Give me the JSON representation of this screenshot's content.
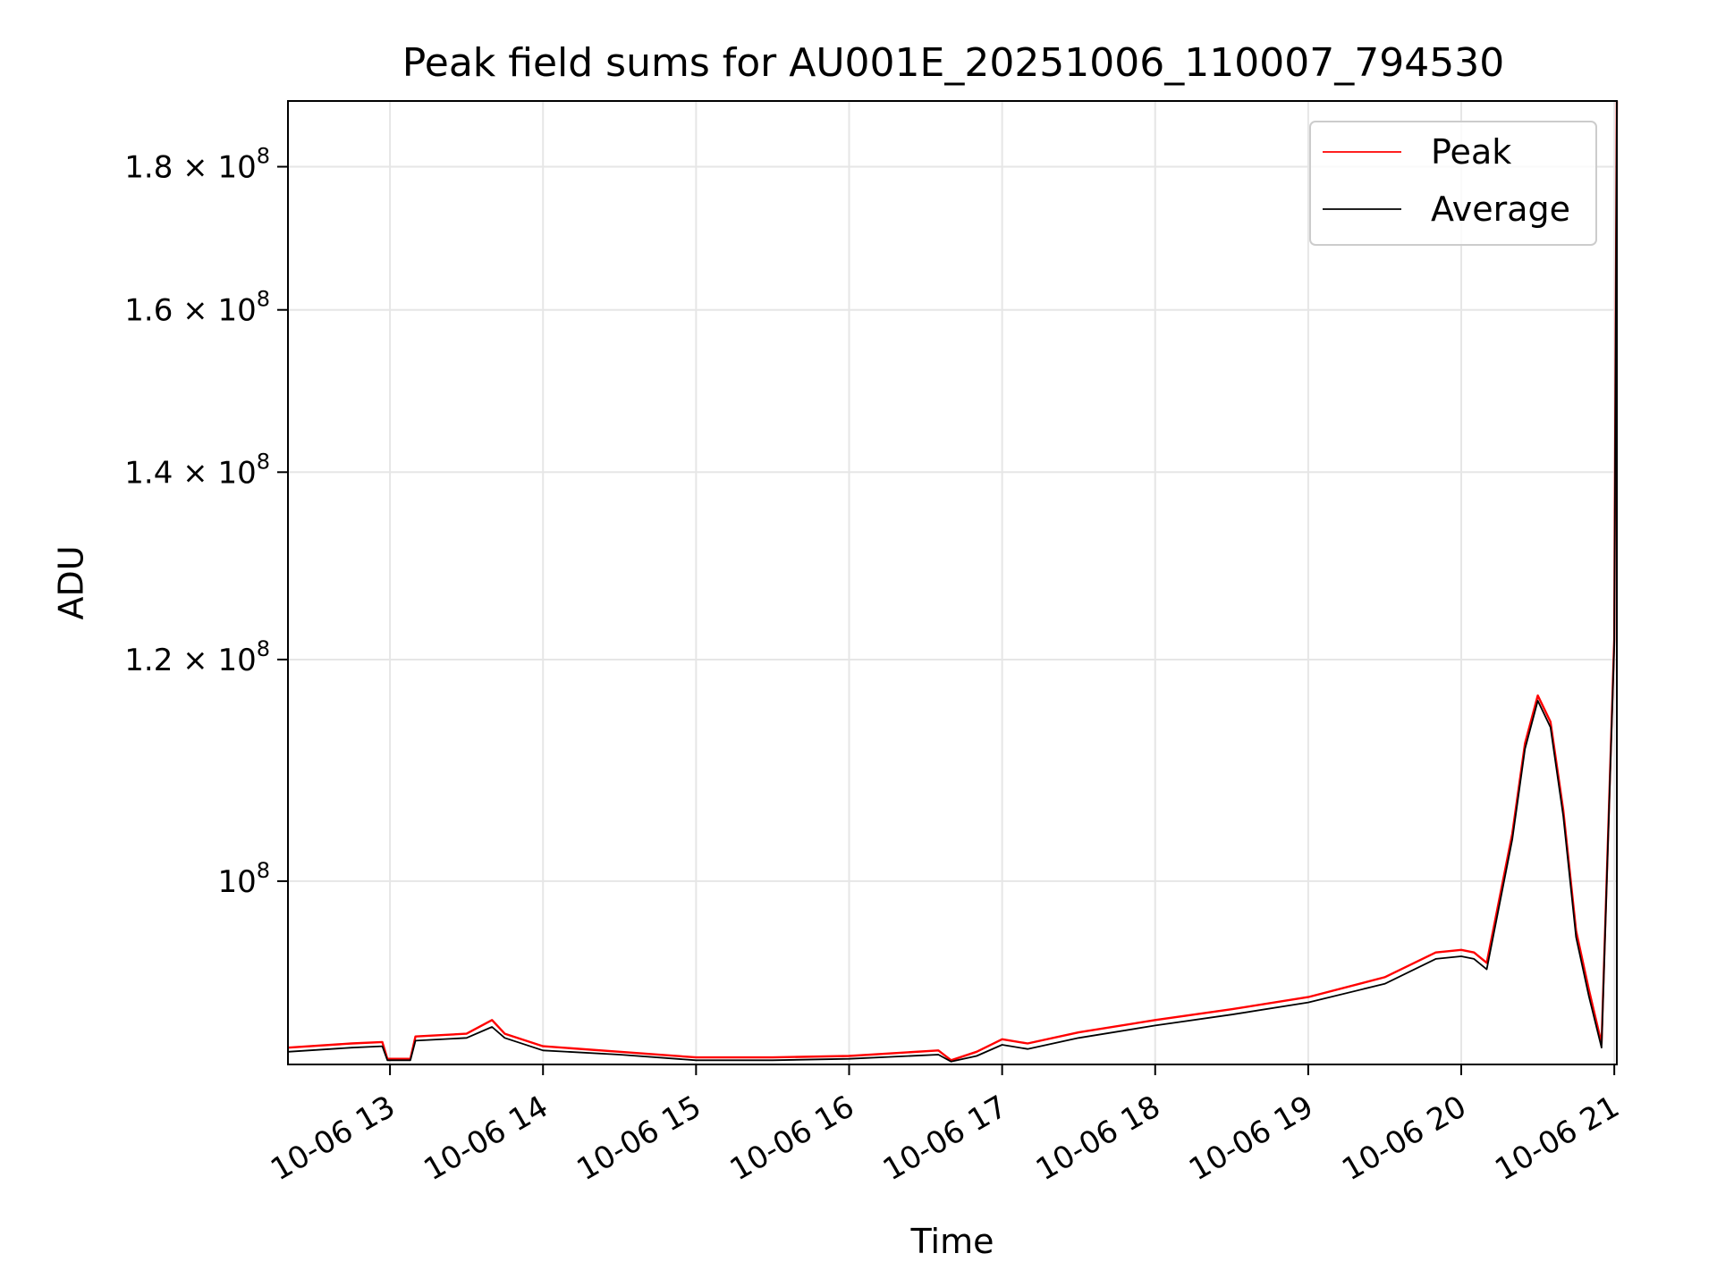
{
  "chart_data": {
    "type": "line",
    "title": "Peak field sums for AU001E_20251006_110007_794530",
    "xlabel": "Time",
    "ylabel": "ADU",
    "x_scale": "time",
    "y_scale": "log",
    "xlim": [
      "2025-10-06 12:20",
      "2025-10-06 21:01"
    ],
    "ylim": [
      86000000,
      190000000
    ],
    "x_ticks": [
      {
        "value": "2025-10-06 13:00",
        "label": "10-06 13"
      },
      {
        "value": "2025-10-06 14:00",
        "label": "10-06 14"
      },
      {
        "value": "2025-10-06 15:00",
        "label": "10-06 15"
      },
      {
        "value": "2025-10-06 16:00",
        "label": "10-06 16"
      },
      {
        "value": "2025-10-06 17:00",
        "label": "10-06 17"
      },
      {
        "value": "2025-10-06 18:00",
        "label": "10-06 18"
      },
      {
        "value": "2025-10-06 19:00",
        "label": "10-06 19"
      },
      {
        "value": "2025-10-06 20:00",
        "label": "10-06 20"
      },
      {
        "value": "2025-10-06 21:00",
        "label": "10-06 21"
      }
    ],
    "y_ticks": [
      {
        "value": 100000000,
        "mantissa": "",
        "base": "10",
        "exp": "8"
      },
      {
        "value": 120000000,
        "mantissa": "1.2",
        "base": "10",
        "exp": "8"
      },
      {
        "value": 140000000,
        "mantissa": "1.4",
        "base": "10",
        "exp": "8"
      },
      {
        "value": 160000000,
        "mantissa": "1.6",
        "base": "10",
        "exp": "8"
      },
      {
        "value": 180000000,
        "mantissa": "1.8",
        "base": "10",
        "exp": "8"
      }
    ],
    "grid": true,
    "legend_position": "top-right",
    "series": [
      {
        "name": "Peak",
        "color": "#ff0000",
        "points": [
          [
            "2025-10-06 12:20",
            87200000
          ],
          [
            "2025-10-06 12:45",
            87500000
          ],
          [
            "2025-10-06 12:57",
            87600000
          ],
          [
            "2025-10-06 12:59",
            86400000
          ],
          [
            "2025-10-06 13:08",
            86400000
          ],
          [
            "2025-10-06 13:10",
            88000000
          ],
          [
            "2025-10-06 13:30",
            88200000
          ],
          [
            "2025-10-06 13:40",
            89200000
          ],
          [
            "2025-10-06 13:45",
            88200000
          ],
          [
            "2025-10-06 14:00",
            87300000
          ],
          [
            "2025-10-06 14:30",
            86900000
          ],
          [
            "2025-10-06 15:00",
            86500000
          ],
          [
            "2025-10-06 15:30",
            86500000
          ],
          [
            "2025-10-06 16:00",
            86600000
          ],
          [
            "2025-10-06 16:35",
            87000000
          ],
          [
            "2025-10-06 16:40",
            86300000
          ],
          [
            "2025-10-06 16:50",
            86900000
          ],
          [
            "2025-10-06 17:00",
            87800000
          ],
          [
            "2025-10-06 17:10",
            87500000
          ],
          [
            "2025-10-06 17:30",
            88300000
          ],
          [
            "2025-10-06 18:00",
            89200000
          ],
          [
            "2025-10-06 18:30",
            90000000
          ],
          [
            "2025-10-06 19:00",
            90900000
          ],
          [
            "2025-10-06 19:30",
            92400000
          ],
          [
            "2025-10-06 19:50",
            94300000
          ],
          [
            "2025-10-06 20:00",
            94500000
          ],
          [
            "2025-10-06 20:05",
            94300000
          ],
          [
            "2025-10-06 20:10",
            93500000
          ],
          [
            "2025-10-06 20:20",
            104000000
          ],
          [
            "2025-10-06 20:25",
            112000000
          ],
          [
            "2025-10-06 20:30",
            116500000
          ],
          [
            "2025-10-06 20:35",
            114000000
          ],
          [
            "2025-10-06 20:40",
            106000000
          ],
          [
            "2025-10-06 20:45",
            96000000
          ],
          [
            "2025-10-06 20:50",
            91500000
          ],
          [
            "2025-10-06 20:55",
            87500000
          ],
          [
            "2025-10-06 21:00",
            122000000
          ],
          [
            "2025-10-06 21:01",
            190000000
          ]
        ]
      },
      {
        "name": "Average",
        "color": "#000000",
        "points": [
          [
            "2025-10-06 12:20",
            86900000
          ],
          [
            "2025-10-06 12:45",
            87200000
          ],
          [
            "2025-10-06 12:57",
            87300000
          ],
          [
            "2025-10-06 12:59",
            86300000
          ],
          [
            "2025-10-06 13:08",
            86300000
          ],
          [
            "2025-10-06 13:10",
            87700000
          ],
          [
            "2025-10-06 13:30",
            87900000
          ],
          [
            "2025-10-06 13:40",
            88700000
          ],
          [
            "2025-10-06 13:45",
            87900000
          ],
          [
            "2025-10-06 14:00",
            87000000
          ],
          [
            "2025-10-06 14:30",
            86700000
          ],
          [
            "2025-10-06 15:00",
            86300000
          ],
          [
            "2025-10-06 15:30",
            86300000
          ],
          [
            "2025-10-06 16:00",
            86400000
          ],
          [
            "2025-10-06 16:35",
            86700000
          ],
          [
            "2025-10-06 16:40",
            86200000
          ],
          [
            "2025-10-06 16:50",
            86600000
          ],
          [
            "2025-10-06 17:00",
            87400000
          ],
          [
            "2025-10-06 17:10",
            87100000
          ],
          [
            "2025-10-06 17:30",
            87900000
          ],
          [
            "2025-10-06 18:00",
            88800000
          ],
          [
            "2025-10-06 18:30",
            89600000
          ],
          [
            "2025-10-06 19:00",
            90500000
          ],
          [
            "2025-10-06 19:30",
            91900000
          ],
          [
            "2025-10-06 19:50",
            93800000
          ],
          [
            "2025-10-06 20:00",
            94000000
          ],
          [
            "2025-10-06 20:05",
            93800000
          ],
          [
            "2025-10-06 20:10",
            93000000
          ],
          [
            "2025-10-06 20:20",
            103500000
          ],
          [
            "2025-10-06 20:25",
            111500000
          ],
          [
            "2025-10-06 20:30",
            116000000
          ],
          [
            "2025-10-06 20:35",
            113500000
          ],
          [
            "2025-10-06 20:40",
            105500000
          ],
          [
            "2025-10-06 20:45",
            95500000
          ],
          [
            "2025-10-06 20:50",
            91000000
          ],
          [
            "2025-10-06 20:55",
            87200000
          ],
          [
            "2025-10-06 21:00",
            121500000
          ],
          [
            "2025-10-06 21:01",
            189500000
          ]
        ]
      }
    ]
  }
}
